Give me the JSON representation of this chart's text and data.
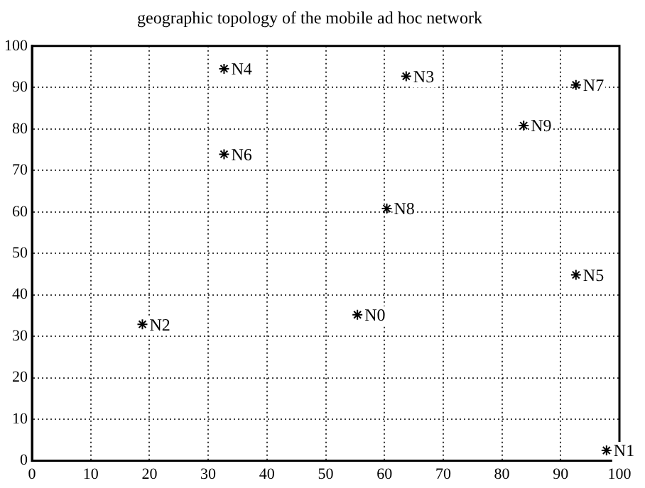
{
  "chart_data": {
    "type": "scatter",
    "title": "geographic topology of the mobile ad hoc network",
    "series": [
      {
        "color": "#000000",
        "x": [
          55.4,
          97.8,
          18.8,
          63.7,
          32.7,
          92.6,
          32.7,
          92.6,
          60.4,
          83.7
        ],
        "values": [
          35.2,
          2.5,
          32.9,
          92.7,
          94.5,
          44.8,
          73.9,
          90.6,
          60.8,
          80.8
        ]
      }
    ],
    "annotations": [
      {
        "text": "N0",
        "x": 55.4,
        "y": 35.2
      },
      {
        "text": "N1",
        "x": 97.8,
        "y": 2.5
      },
      {
        "text": "N2",
        "x": 18.8,
        "y": 32.9
      },
      {
        "text": "N3",
        "x": 63.7,
        "y": 92.7
      },
      {
        "text": "N4",
        "x": 32.7,
        "y": 94.5
      },
      {
        "text": "N5",
        "x": 92.6,
        "y": 44.8
      },
      {
        "text": "N6",
        "x": 32.7,
        "y": 73.9
      },
      {
        "text": "N7",
        "x": 92.6,
        "y": 90.6
      },
      {
        "text": "N8",
        "x": 60.4,
        "y": 60.8
      },
      {
        "text": "N9",
        "x": 83.7,
        "y": 80.8
      }
    ],
    "xlim": [
      0,
      100
    ],
    "ylim": [
      0,
      100
    ],
    "xticks": [
      0,
      10,
      20,
      30,
      40,
      50,
      60,
      70,
      80,
      90,
      100
    ],
    "yticks": [
      0,
      10,
      20,
      30,
      40,
      50,
      60,
      70,
      80,
      90,
      100
    ],
    "grid": true,
    "legend": false,
    "marker": "cross"
  }
}
